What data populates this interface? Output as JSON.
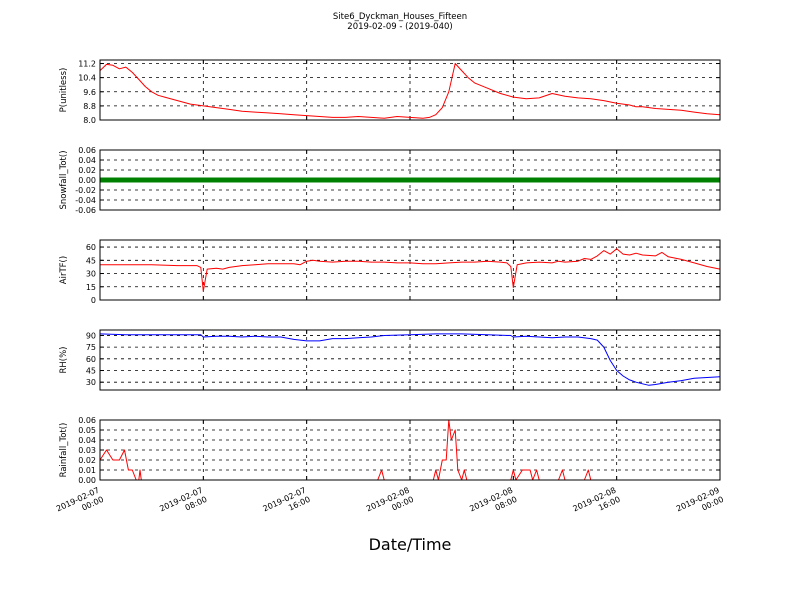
{
  "chart_data": {
    "type": "line",
    "title": "Site6_Dyckman_Houses_Fifteen",
    "subtitle": "2019-02-09 - (2019-040)",
    "xlabel": "Date/Time",
    "x_ticks": [
      "2019-02-07\n00:00",
      "2019-02-07\n08:00",
      "2019-02-07\n16:00",
      "2019-02-08\n00:00",
      "2019-02-08\n08:00",
      "2019-02-08\n16:00",
      "2019-02-09\n00:00"
    ],
    "x_range_hours": [
      0,
      48
    ],
    "grid": true,
    "panels": [
      {
        "ylabel": "P(unitless)",
        "ylim": [
          8.0,
          11.4
        ],
        "yticks": [
          "8.0",
          "8.8",
          "9.6",
          "10.4",
          "11.2"
        ],
        "ytick_values": [
          8.0,
          8.8,
          9.6,
          10.4,
          11.2
        ],
        "color": "#ff0000",
        "style": "line",
        "series": [
          [
            0,
            10.8
          ],
          [
            0.5,
            11.15
          ],
          [
            1,
            11.1
          ],
          [
            1.5,
            10.9
          ],
          [
            2,
            11.0
          ],
          [
            2.5,
            10.7
          ],
          [
            3,
            10.3
          ],
          [
            3.5,
            9.9
          ],
          [
            4,
            9.6
          ],
          [
            4.5,
            9.4
          ],
          [
            5,
            9.3
          ],
          [
            6,
            9.1
          ],
          [
            7,
            8.9
          ],
          [
            8,
            8.8
          ],
          [
            9,
            8.7
          ],
          [
            10,
            8.6
          ],
          [
            11,
            8.5
          ],
          [
            12,
            8.45
          ],
          [
            13,
            8.4
          ],
          [
            14,
            8.35
          ],
          [
            15,
            8.3
          ],
          [
            16,
            8.25
          ],
          [
            17,
            8.2
          ],
          [
            18,
            8.15
          ],
          [
            19,
            8.15
          ],
          [
            20,
            8.2
          ],
          [
            21,
            8.15
          ],
          [
            22,
            8.1
          ],
          [
            23,
            8.2
          ],
          [
            24,
            8.15
          ],
          [
            25,
            8.1
          ],
          [
            25.5,
            8.15
          ],
          [
            26,
            8.3
          ],
          [
            26.5,
            8.7
          ],
          [
            27,
            9.6
          ],
          [
            27.5,
            11.2
          ],
          [
            28,
            10.8
          ],
          [
            28.5,
            10.4
          ],
          [
            29,
            10.1
          ],
          [
            30,
            9.8
          ],
          [
            31,
            9.5
          ],
          [
            32,
            9.3
          ],
          [
            33,
            9.2
          ],
          [
            34,
            9.25
          ],
          [
            35,
            9.5
          ],
          [
            36,
            9.35
          ],
          [
            37,
            9.25
          ],
          [
            38,
            9.2
          ],
          [
            39,
            9.1
          ],
          [
            40,
            8.95
          ],
          [
            41,
            8.85
          ],
          [
            42,
            8.75
          ],
          [
            43,
            8.65
          ],
          [
            44,
            8.6
          ],
          [
            41.5,
            8.75
          ],
          [
            45,
            8.55
          ],
          [
            46,
            8.45
          ],
          [
            47,
            8.35
          ],
          [
            48,
            8.3
          ]
        ]
      },
      {
        "ylabel": "Snowfall_Tot()",
        "ylim": [
          -0.06,
          0.06
        ],
        "yticks": [
          "-0.06",
          "-0.04",
          "-0.02",
          "0.00",
          "0.02",
          "0.04",
          "0.06"
        ],
        "ytick_values": [
          -0.06,
          -0.04,
          -0.02,
          0.0,
          0.02,
          0.04,
          0.06
        ],
        "color": "#008000",
        "style": "thick",
        "series": [
          [
            0,
            0
          ],
          [
            48,
            0
          ]
        ]
      },
      {
        "ylabel": "AirTF()",
        "ylim": [
          0,
          68
        ],
        "yticks": [
          "0",
          "15",
          "30",
          "45",
          "60"
        ],
        "ytick_values": [
          0,
          15,
          30,
          45,
          60
        ],
        "color": "#ff0000",
        "style": "line",
        "series": [
          [
            0,
            40
          ],
          [
            2,
            40
          ],
          [
            4,
            40
          ],
          [
            6,
            39
          ],
          [
            7.5,
            39
          ],
          [
            7.8,
            37
          ],
          [
            8,
            10
          ],
          [
            8.3,
            35
          ],
          [
            9,
            36
          ],
          [
            9.5,
            35
          ],
          [
            10,
            37
          ],
          [
            11,
            39
          ],
          [
            12,
            40
          ],
          [
            13,
            41
          ],
          [
            14,
            41
          ],
          [
            15,
            41
          ],
          [
            15.5,
            40
          ],
          [
            16,
            44
          ],
          [
            16.5,
            45
          ],
          [
            17,
            44
          ],
          [
            18,
            43
          ],
          [
            19,
            44
          ],
          [
            20,
            44
          ],
          [
            21,
            43
          ],
          [
            22,
            43
          ],
          [
            23,
            42
          ],
          [
            24,
            42
          ],
          [
            25,
            41
          ],
          [
            26,
            41
          ],
          [
            27,
            42
          ],
          [
            28,
            43
          ],
          [
            29,
            43
          ],
          [
            30,
            44
          ],
          [
            31,
            43
          ],
          [
            31.5,
            42
          ],
          [
            31.8,
            38
          ],
          [
            32,
            14
          ],
          [
            32.3,
            40
          ],
          [
            33,
            42
          ],
          [
            34,
            43
          ],
          [
            35,
            42
          ],
          [
            35.5,
            44
          ],
          [
            36,
            43
          ],
          [
            37,
            44
          ],
          [
            37.5,
            47
          ],
          [
            38,
            46
          ],
          [
            38.5,
            50
          ],
          [
            39,
            56
          ],
          [
            39.5,
            52
          ],
          [
            40,
            58
          ],
          [
            40.5,
            52
          ],
          [
            41,
            51
          ],
          [
            41.5,
            53
          ],
          [
            42,
            51
          ],
          [
            43,
            50
          ],
          [
            43.5,
            54
          ],
          [
            44,
            49
          ],
          [
            45,
            46
          ],
          [
            46,
            42
          ],
          [
            47,
            38
          ],
          [
            48,
            35
          ]
        ]
      },
      {
        "ylabel": "RH(%)",
        "ylim": [
          20,
          97
        ],
        "yticks": [
          "30",
          "45",
          "60",
          "75",
          "90"
        ],
        "ytick_values": [
          30,
          45,
          60,
          75,
          90
        ],
        "color": "#0000ff",
        "style": "line",
        "series": [
          [
            0,
            92
          ],
          [
            2,
            91
          ],
          [
            4,
            91
          ],
          [
            6,
            91
          ],
          [
            7.8,
            91
          ],
          [
            8,
            88
          ],
          [
            9,
            89
          ],
          [
            10,
            89
          ],
          [
            11,
            88
          ],
          [
            12,
            89
          ],
          [
            13,
            88
          ],
          [
            14,
            88
          ],
          [
            15,
            85
          ],
          [
            16,
            83
          ],
          [
            17,
            83
          ],
          [
            18,
            86
          ],
          [
            19,
            86
          ],
          [
            20,
            87
          ],
          [
            21,
            88
          ],
          [
            22,
            90
          ],
          [
            24,
            91
          ],
          [
            26,
            92
          ],
          [
            28,
            92
          ],
          [
            30,
            91
          ],
          [
            31.8,
            90
          ],
          [
            32,
            88
          ],
          [
            33,
            89
          ],
          [
            34,
            88
          ],
          [
            35,
            87
          ],
          [
            36,
            88
          ],
          [
            37,
            88
          ],
          [
            38,
            86
          ],
          [
            38.5,
            84
          ],
          [
            39,
            75
          ],
          [
            39.5,
            58
          ],
          [
            40,
            45
          ],
          [
            40.5,
            38
          ],
          [
            41,
            33
          ],
          [
            41.5,
            30
          ],
          [
            42,
            28
          ],
          [
            42.5,
            26
          ],
          [
            43,
            27
          ],
          [
            44,
            30
          ],
          [
            45,
            32
          ],
          [
            46,
            35
          ],
          [
            47,
            36
          ],
          [
            48,
            37
          ]
        ]
      },
      {
        "ylabel": "Rainfall_Tot()",
        "ylim": [
          0,
          0.06
        ],
        "yticks": [
          "0.00",
          "0.01",
          "0.02",
          "0.03",
          "0.04",
          "0.05",
          "0.06"
        ],
        "ytick_values": [
          0,
          0.01,
          0.02,
          0.03,
          0.04,
          0.05,
          0.06
        ],
        "color": "#ff0000",
        "style": "line",
        "series": [
          [
            0,
            0.02
          ],
          [
            0.5,
            0.03
          ],
          [
            1,
            0.02
          ],
          [
            1.5,
            0.02
          ],
          [
            1.9,
            0.03
          ],
          [
            2.2,
            0.01
          ],
          [
            2.5,
            0.01
          ],
          [
            2.8,
            0
          ],
          [
            3,
            0
          ],
          [
            3.1,
            0.01
          ],
          [
            3.2,
            0
          ],
          [
            21.5,
            0
          ],
          [
            21.8,
            0.01
          ],
          [
            22,
            0
          ],
          [
            25.8,
            0
          ],
          [
            26,
            0.01
          ],
          [
            26.2,
            0
          ],
          [
            26.5,
            0.02
          ],
          [
            26.8,
            0.02
          ],
          [
            27,
            0.06
          ],
          [
            27.2,
            0.04
          ],
          [
            27.5,
            0.05
          ],
          [
            27.7,
            0.01
          ],
          [
            28,
            0
          ],
          [
            28.2,
            0.01
          ],
          [
            28.4,
            0
          ],
          [
            31.8,
            0
          ],
          [
            32,
            0.01
          ],
          [
            32.2,
            0
          ],
          [
            32.7,
            0.01
          ],
          [
            33.3,
            0.01
          ],
          [
            33.5,
            0
          ],
          [
            33.8,
            0.01
          ],
          [
            34,
            0
          ],
          [
            35.5,
            0
          ],
          [
            35.8,
            0.01
          ],
          [
            36,
            0
          ],
          [
            37.5,
            0
          ],
          [
            37.8,
            0.01
          ],
          [
            38,
            0
          ],
          [
            48,
            0
          ]
        ]
      }
    ]
  }
}
